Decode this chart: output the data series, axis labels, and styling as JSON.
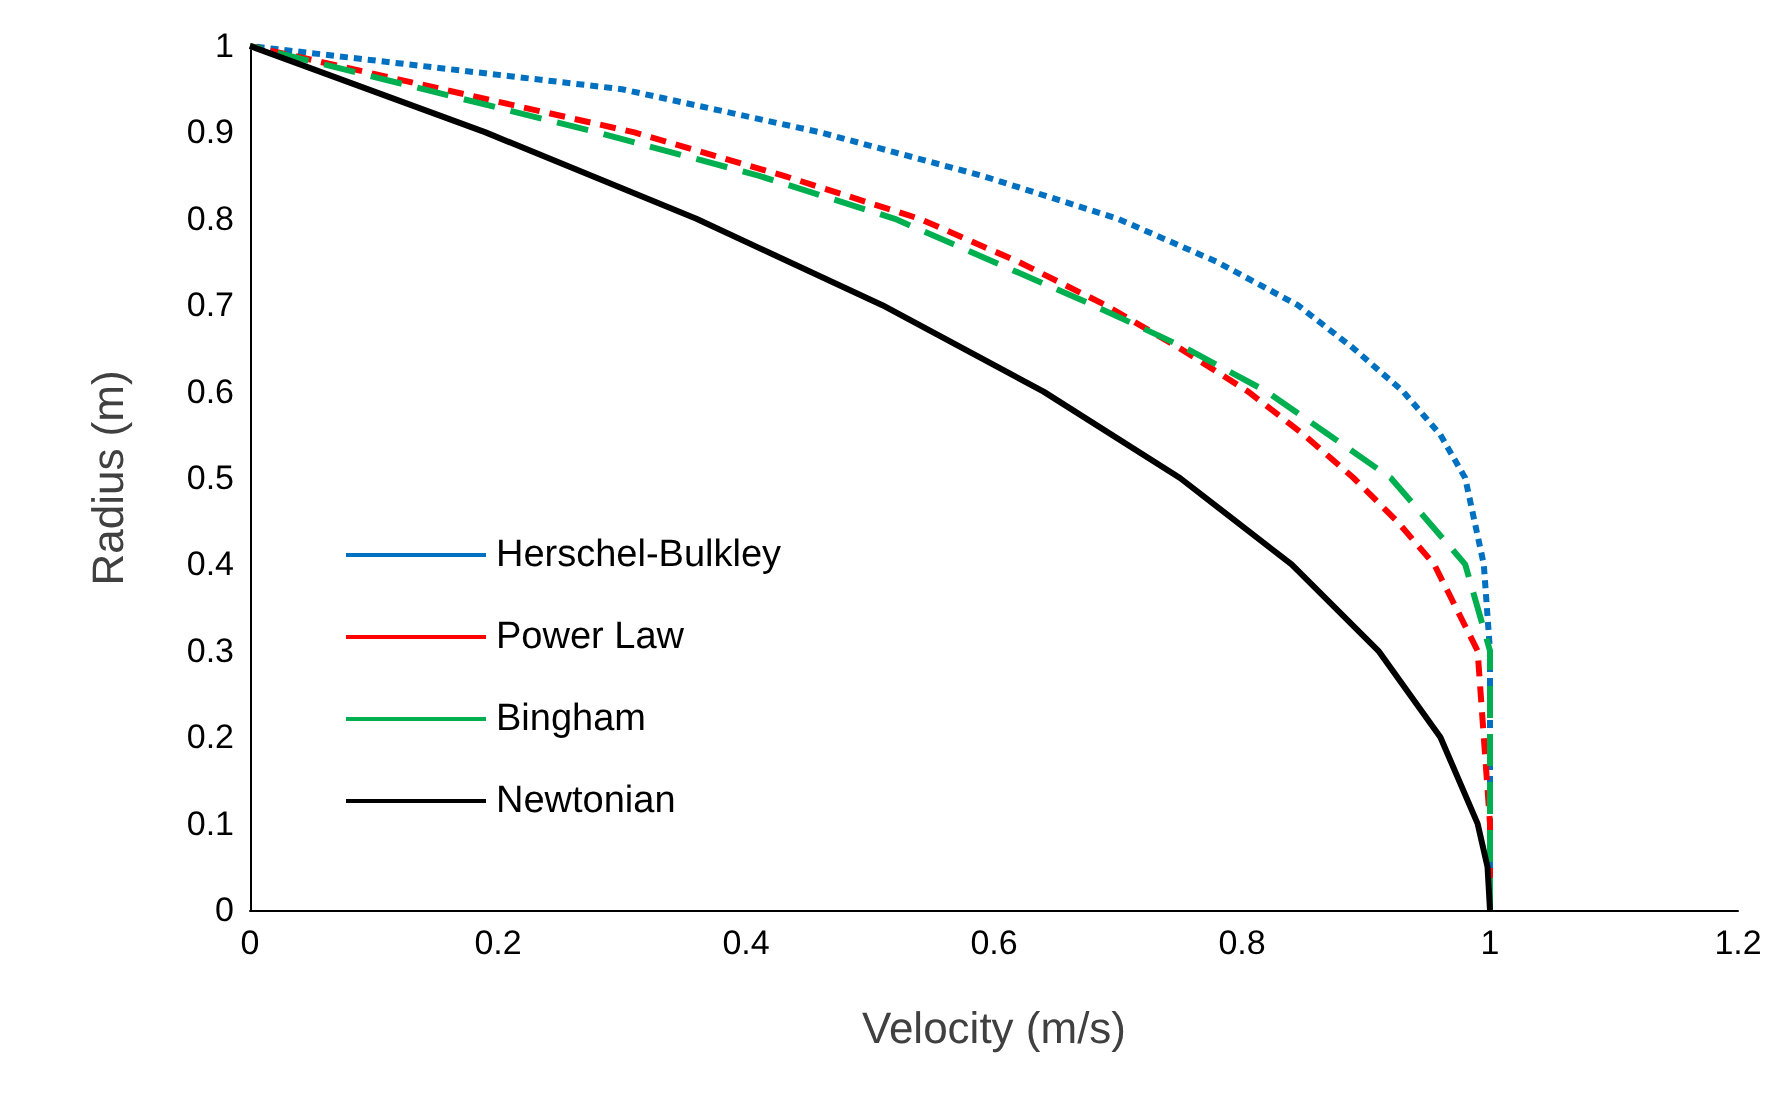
{
  "chart_data": {
    "type": "line",
    "xlabel": "Velocity (m/s)",
    "ylabel": "Radius (m)",
    "xlim": [
      0,
      1.2
    ],
    "xticks": [
      0,
      0.2,
      0.4,
      0.6,
      0.8,
      1,
      1.2
    ],
    "ylim": [
      0,
      1
    ],
    "yticks": [
      0,
      0.1,
      0.2,
      0.3,
      0.4,
      0.5,
      0.6,
      0.7,
      0.8,
      0.9,
      1
    ],
    "grid": false,
    "legend": "left",
    "marker": "none",
    "series": [
      {
        "name": "Herschel-Bulkley",
        "color": "#0070c0",
        "line_style": "dotted",
        "x": [
          1,
          1,
          0.995,
          0.98,
          0.96,
          0.93,
          0.89,
          0.845,
          0.78,
          0.7,
          0.59,
          0.46,
          0.3,
          0
        ],
        "values": [
          0,
          0.3,
          0.4,
          0.5,
          0.55,
          0.6,
          0.65,
          0.7,
          0.75,
          0.8,
          0.85,
          0.9,
          0.95,
          1
        ]
      },
      {
        "name": "Power Law",
        "color": "#ff0000",
        "line_style": "dashed",
        "x": [
          1,
          1,
          0.99,
          0.955,
          0.925,
          0.89,
          0.85,
          0.805,
          0.75,
          0.69,
          0.62,
          0.54,
          0.43,
          0.31,
          0
        ],
        "values": [
          0,
          0.1,
          0.3,
          0.4,
          0.45,
          0.5,
          0.55,
          0.6,
          0.65,
          0.7,
          0.75,
          0.8,
          0.85,
          0.9,
          1
        ]
      },
      {
        "name": "Bingham",
        "color": "#00b050",
        "line_style": "longdash",
        "x": [
          1,
          1,
          0.98,
          0.95,
          0.92,
          0.87,
          0.82,
          0.755,
          0.68,
          0.6,
          0.52,
          0.41,
          0.28,
          0
        ],
        "values": [
          0,
          0.3,
          0.4,
          0.45,
          0.5,
          0.55,
          0.6,
          0.65,
          0.7,
          0.75,
          0.8,
          0.85,
          0.9,
          1
        ]
      },
      {
        "name": "Newtonian",
        "color": "#000000",
        "line_style": "solid",
        "x": [
          1,
          0.998,
          0.99,
          0.96,
          0.91,
          0.84,
          0.75,
          0.64,
          0.51,
          0.36,
          0.19,
          0
        ],
        "values": [
          0,
          0.05,
          0.1,
          0.2,
          0.3,
          0.4,
          0.5,
          0.6,
          0.7,
          0.8,
          0.9,
          1
        ]
      }
    ]
  }
}
